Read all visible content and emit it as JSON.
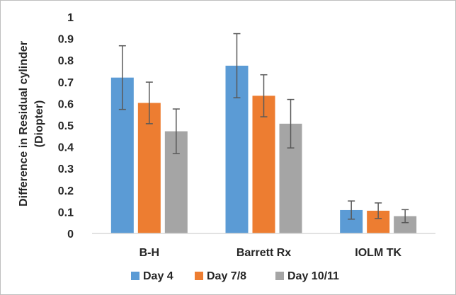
{
  "chart_data": {
    "type": "bar",
    "title": "",
    "xlabel": "",
    "ylabel_lines": [
      "Difference in Residual cylinder",
      "(Diopter)"
    ],
    "ylim": [
      0,
      1
    ],
    "yticks": [
      "0",
      "0.1",
      "0.2",
      "0.3",
      "0.4",
      "0.5",
      "0.6",
      "0.7",
      "0.8",
      "0.9",
      "1"
    ],
    "categories": [
      "B-H",
      "Barrett Rx",
      "IOLM TK"
    ],
    "series": [
      {
        "name": "Day 4",
        "color": "#5b9bd5",
        "values": [
          0.72,
          0.775,
          0.108
        ],
        "error": [
          0.147,
          0.148,
          0.042
        ]
      },
      {
        "name": "Day 7/8",
        "color": "#ed7d31",
        "values": [
          0.603,
          0.636,
          0.105
        ],
        "error": [
          0.096,
          0.097,
          0.036
        ]
      },
      {
        "name": "Day 10/11",
        "color": "#a5a5a5",
        "values": [
          0.472,
          0.507,
          0.08
        ],
        "error": [
          0.103,
          0.112,
          0.03
        ]
      }
    ],
    "grid": false,
    "error_bars": true,
    "legend_position": "bottom"
  }
}
